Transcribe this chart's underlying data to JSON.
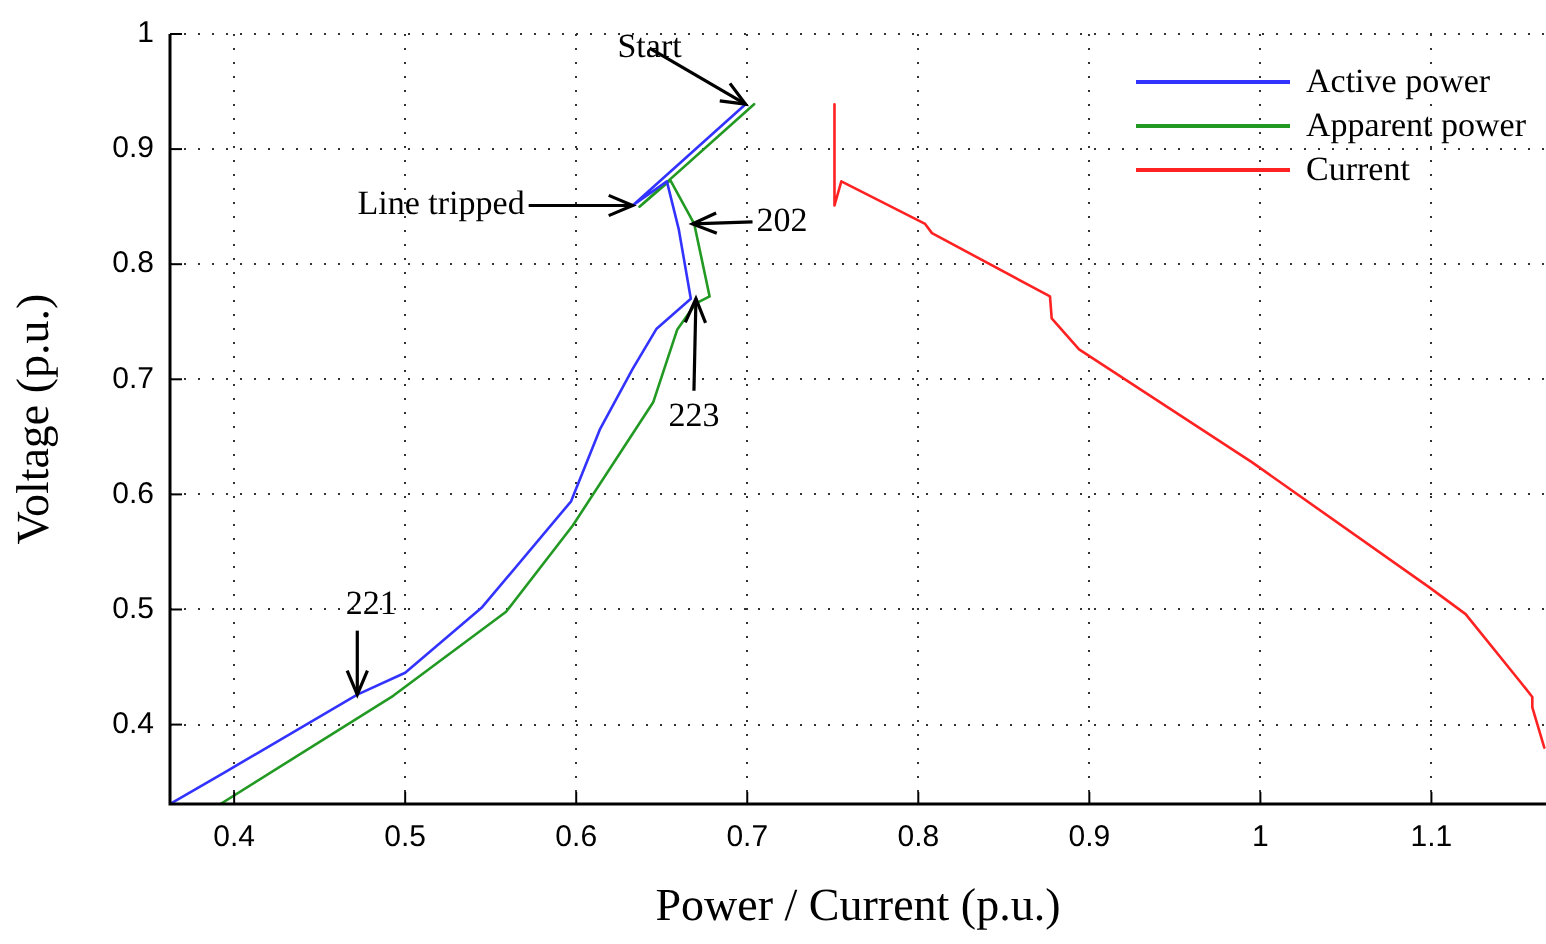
{
  "chart_data": {
    "type": "line",
    "xlabel": "Power / Current (p.u.)",
    "ylabel": "Voltage (p.u.)",
    "xlim": [
      0.3625,
      1.167
    ],
    "ylim": [
      0.331,
      1
    ],
    "xticks": [
      0.4,
      0.5,
      0.6,
      0.7,
      0.8,
      0.9,
      1,
      1.1
    ],
    "yticks": [
      0.4,
      0.5,
      0.6,
      0.7,
      0.8,
      0.9,
      1
    ],
    "grid": true,
    "legend": "top right",
    "marker": "none",
    "line_style": "solid",
    "series": [
      {
        "name": "Active power",
        "color": "#3333ff",
        "x": [
          0.699,
          0.633,
          0.653,
          0.66,
          0.667,
          0.647,
          0.633,
          0.614,
          0.597,
          0.545,
          0.5,
          0.472,
          0.395,
          0.3625
        ],
        "values": [
          0.939,
          0.851,
          0.872,
          0.83,
          0.77,
          0.744,
          0.709,
          0.657,
          0.594,
          0.502,
          0.445,
          0.426,
          0.359,
          0.331
        ]
      },
      {
        "name": "Apparent power",
        "color": "#229922",
        "x": [
          0.704,
          0.637,
          0.655,
          0.669,
          0.678,
          0.67,
          0.659,
          0.645,
          0.598,
          0.559,
          0.493,
          0.392
        ],
        "values": [
          0.939,
          0.85,
          0.873,
          0.835,
          0.772,
          0.766,
          0.743,
          0.68,
          0.573,
          0.498,
          0.425,
          0.331
        ]
      },
      {
        "name": "Current",
        "color": "#ff2222",
        "x": [
          0.751,
          0.751,
          0.755,
          0.804,
          0.808,
          0.877,
          0.878,
          0.894,
          0.995,
          1.099,
          1.12,
          1.151,
          1.159,
          1.159,
          1.166
        ],
        "values": [
          0.939,
          0.851,
          0.872,
          0.835,
          0.827,
          0.772,
          0.753,
          0.726,
          0.628,
          0.519,
          0.496,
          0.439,
          0.424,
          0.415,
          0.38
        ]
      }
    ],
    "annotations": [
      {
        "text": "Start",
        "x": 0.699,
        "y": 0.939
      },
      {
        "text": "Line tripped",
        "x": 0.633,
        "y": 0.851
      },
      {
        "text": "202",
        "x": 0.668,
        "y": 0.835
      },
      {
        "text": "223",
        "x": 0.67,
        "y": 0.77
      },
      {
        "text": "221",
        "x": 0.472,
        "y": 0.426
      }
    ]
  }
}
